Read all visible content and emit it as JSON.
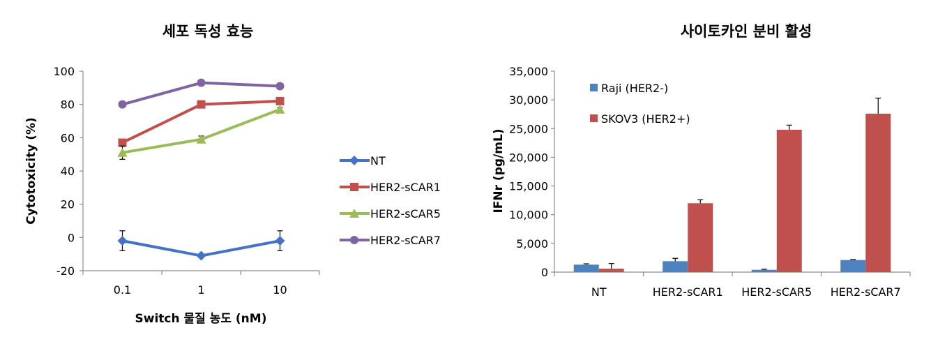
{
  "chart_data": [
    {
      "type": "line",
      "title": "세포 독성 효능",
      "xlabel": "Switch 물질 농도 (nM)",
      "ylabel": "Cytotoxicity (%)",
      "x": [
        "0.1",
        "1",
        "10"
      ],
      "x_scale": "log",
      "ylim": [
        -20,
        100
      ],
      "yticks": [
        "-20",
        "0",
        "20",
        "40",
        "60",
        "80",
        "100"
      ],
      "grid": false,
      "legend_position": "right",
      "series": [
        {
          "name": "NT",
          "color": "#4472C4",
          "marker": "diamond",
          "values": [
            -2,
            -11,
            -2
          ],
          "error": [
            6,
            0,
            6
          ]
        },
        {
          "name": "HER2-sCAR1",
          "color": "#C0504D",
          "marker": "square",
          "values": [
            57,
            80,
            82
          ],
          "error": [
            0,
            0,
            0
          ]
        },
        {
          "name": "HER2-sCAR5",
          "color": "#9BBB59",
          "marker": "triangle",
          "values": [
            51,
            59,
            77
          ],
          "error": [
            4,
            2,
            1
          ]
        },
        {
          "name": "HER2-sCAR7",
          "color": "#8064A2",
          "marker": "circle",
          "values": [
            80,
            93,
            91
          ],
          "error": [
            0,
            0,
            0
          ]
        }
      ]
    },
    {
      "type": "bar",
      "title": "사이토카인 분비 활성",
      "xlabel": "",
      "ylabel": "IFNr (pg/mL)",
      "categories": [
        "NT",
        "HER2-sCAR1",
        "HER2-sCAR5",
        "HER2-sCAR7"
      ],
      "ylim": [
        0,
        35000
      ],
      "yticks": [
        "0",
        "5,000",
        "10,000",
        "15,000",
        "20,000",
        "25,000",
        "30,000",
        "35,000"
      ],
      "grid": false,
      "legend_position": "top-left",
      "series": [
        {
          "name": "Raji (HER2-)",
          "color": "#4F81BD",
          "values": [
            1300,
            1900,
            400,
            2100
          ],
          "error": [
            150,
            500,
            100,
            100
          ]
        },
        {
          "name": "SKOV3 (HER2+)",
          "color": "#C0504D",
          "values": [
            600,
            12000,
            24800,
            27600
          ],
          "error": [
            900,
            600,
            800,
            2700
          ]
        }
      ]
    }
  ]
}
